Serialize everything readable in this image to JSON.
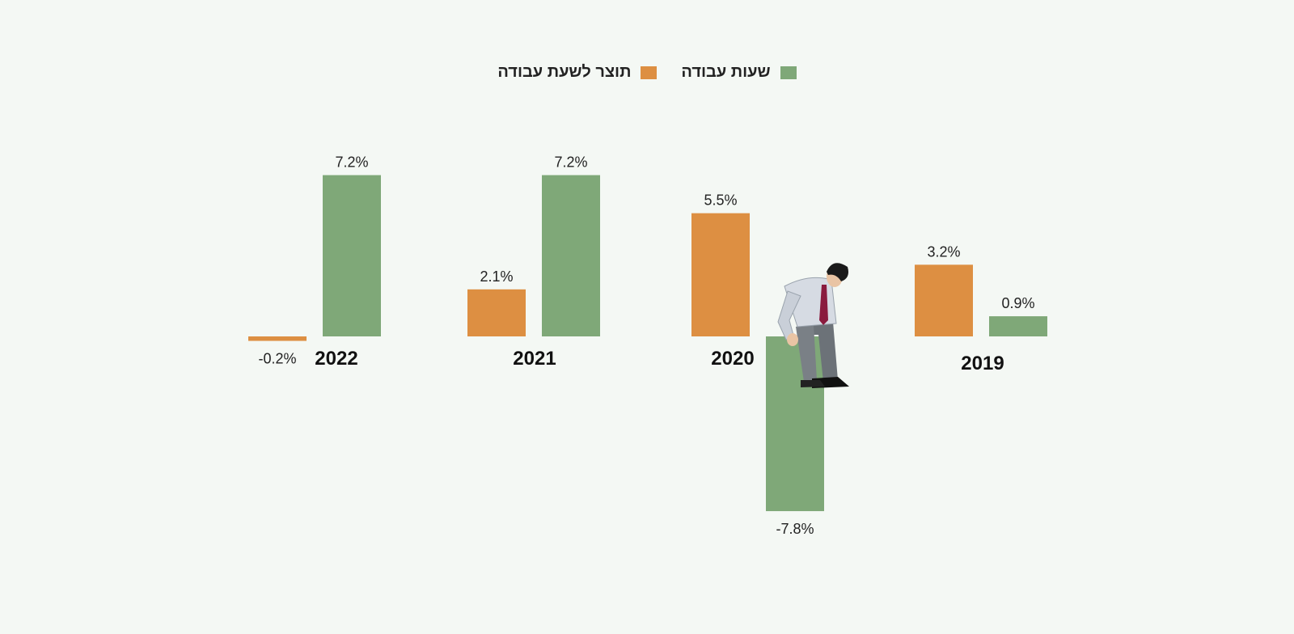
{
  "chart_data": {
    "type": "bar",
    "categories": [
      "2019",
      "2020",
      "2021",
      "2022"
    ],
    "series": [
      {
        "name": "תוצר לשעת עבודה",
        "color": "#dd8f42",
        "values": [
          3.2,
          5.5,
          2.1,
          -0.2
        ],
        "labels": [
          "3.2%",
          "5.5%",
          "2.1%",
          "-0.2%"
        ]
      },
      {
        "name": "שעות עבודה",
        "color": "#7fa878",
        "values": [
          0.9,
          -7.8,
          7.2,
          7.2
        ],
        "labels": [
          "0.9%",
          "-7.8%",
          "7.2%",
          "7.2%"
        ]
      }
    ],
    "title": "",
    "xlabel": "",
    "ylabel": "",
    "ylim": [
      -8,
      8
    ],
    "legend": "top-center",
    "grid": false,
    "illustration": "man-sitting-on-bar"
  }
}
